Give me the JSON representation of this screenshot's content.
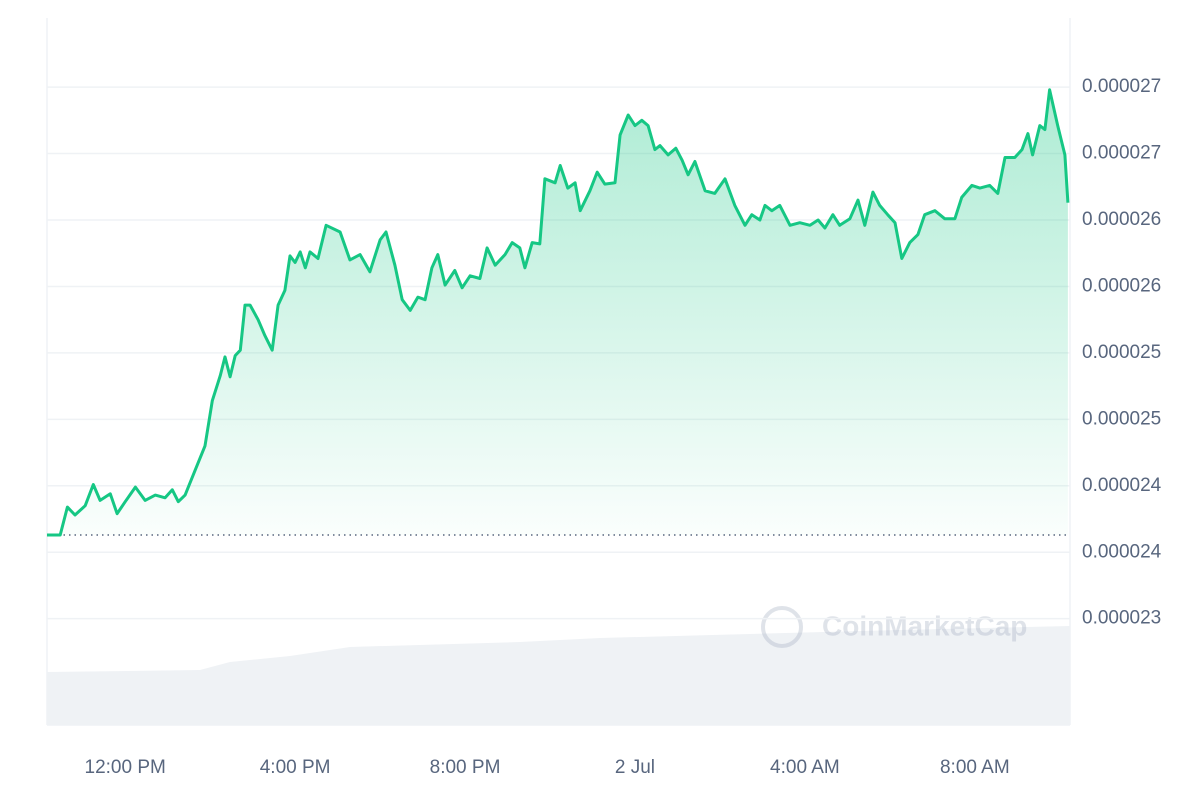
{
  "chart_data": {
    "type": "line",
    "watermark": "CoinMarketCap",
    "x": [
      -1.84,
      -1.53,
      -1.36,
      -1.18,
      -0.94,
      -0.75,
      -0.59,
      -0.35,
      -0.19,
      0,
      0.24,
      0.47,
      0.71,
      0.94,
      1.11,
      1.25,
      1.41,
      1.65,
      1.88,
      2.05,
      2.24,
      2.35,
      2.47,
      2.59,
      2.71,
      2.82,
      2.94,
      3.13,
      3.29,
      3.46,
      3.6,
      3.76,
      3.88,
      4,
      4.12,
      4.24,
      4.35,
      4.54,
      4.73,
      5.06,
      5.29,
      5.53,
      5.76,
      6,
      6.14,
      6.35,
      6.52,
      6.71,
      6.89,
      7.06,
      7.22,
      7.36,
      7.53,
      7.76,
      7.93,
      8.12,
      8.35,
      8.52,
      8.71,
      8.94,
      9.11,
      9.29,
      9.41,
      9.58,
      9.76,
      9.88,
      10.12,
      10.24,
      10.42,
      10.59,
      10.71,
      10.94,
      11.11,
      11.29,
      11.53,
      11.65,
      11.84,
      12,
      12.16,
      12.31,
      12.47,
      12.59,
      12.78,
      12.96,
      13.11,
      13.25,
      13.41,
      13.65,
      13.88,
      14.12,
      14.35,
      14.59,
      14.75,
      14.94,
      15.06,
      15.22,
      15.41,
      15.65,
      15.88,
      16.12,
      16.31,
      16.47,
      16.66,
      16.82,
      17.06,
      17.25,
      17.41,
      17.6,
      17.76,
      17.95,
      18.12,
      18.28,
      18.47,
      18.66,
      18.82,
      19.06,
      19.29,
      19.53,
      19.69,
      19.93,
      20.12,
      20.35,
      20.54,
      20.71,
      20.94,
      21.11,
      21.25,
      21.36,
      21.53,
      21.65,
      21.76,
      21.95,
      22.12,
      22.19
    ],
    "series": [
      {
        "color": "#16c784",
        "values": [
          2.363e-05,
          2.363e-05,
          2.384e-05,
          2.378e-05,
          2.385e-05,
          2.401e-05,
          2.389e-05,
          2.394e-05,
          2.379e-05,
          2.388e-05,
          2.399e-05,
          2.389e-05,
          2.393e-05,
          2.391e-05,
          2.397e-05,
          2.388e-05,
          2.393e-05,
          2.412e-05,
          2.43e-05,
          2.464e-05,
          2.483e-05,
          2.497e-05,
          2.482e-05,
          2.498e-05,
          2.502e-05,
          2.536e-05,
          2.536e-05,
          2.525e-05,
          2.513e-05,
          2.502e-05,
          2.536e-05,
          2.547e-05,
          2.573e-05,
          2.568e-05,
          2.576e-05,
          2.564e-05,
          2.576e-05,
          2.571e-05,
          2.596e-05,
          2.591e-05,
          2.57e-05,
          2.574e-05,
          2.561e-05,
          2.585e-05,
          2.591e-05,
          2.566e-05,
          2.54e-05,
          2.532e-05,
          2.542e-05,
          2.54e-05,
          2.564e-05,
          2.574e-05,
          2.551e-05,
          2.562e-05,
          2.549e-05,
          2.558e-05,
          2.556e-05,
          2.579e-05,
          2.566e-05,
          2.574e-05,
          2.583e-05,
          2.579e-05,
          2.564e-05,
          2.583e-05,
          2.582e-05,
          2.631e-05,
          2.628e-05,
          2.641e-05,
          2.624e-05,
          2.628e-05,
          2.607e-05,
          2.622e-05,
          2.636e-05,
          2.627e-05,
          2.628e-05,
          2.664e-05,
          2.679e-05,
          2.671e-05,
          2.675e-05,
          2.671e-05,
          2.653e-05,
          2.656e-05,
          2.649e-05,
          2.654e-05,
          2.645e-05,
          2.634e-05,
          2.644e-05,
          2.622e-05,
          2.62e-05,
          2.631e-05,
          2.611e-05,
          2.596e-05,
          2.604e-05,
          2.6e-05,
          2.611e-05,
          2.607e-05,
          2.611e-05,
          2.596e-05,
          2.598e-05,
          2.596e-05,
          2.6e-05,
          2.594e-05,
          2.604e-05,
          2.596e-05,
          2.601e-05,
          2.615e-05,
          2.596e-05,
          2.621e-05,
          2.611e-05,
          2.604e-05,
          2.598e-05,
          2.571e-05,
          2.583e-05,
          2.589e-05,
          2.604e-05,
          2.607e-05,
          2.601e-05,
          2.601e-05,
          2.617e-05,
          2.626e-05,
          2.624e-05,
          2.626e-05,
          2.62e-05,
          2.647e-05,
          2.647e-05,
          2.653e-05,
          2.665e-05,
          2.649e-05,
          2.671e-05,
          2.668e-05,
          2.698e-05,
          2.671e-05,
          2.649e-05,
          2.613e-05
        ]
      }
    ],
    "reference_line": 2.363e-05,
    "xlim": [
      -1.84,
      22.24
    ],
    "xticks": [
      {
        "value": 0,
        "label": "12:00 PM"
      },
      {
        "value": 4,
        "label": "4:00 PM"
      },
      {
        "value": 8,
        "label": "8:00 PM"
      },
      {
        "value": 12,
        "label": "2 Jul"
      },
      {
        "value": 16,
        "label": "4:00 AM"
      },
      {
        "value": 20,
        "label": "8:00 AM"
      }
    ],
    "ylim": [
      2.22e-05,
      2.752e-05
    ],
    "yticks": [
      {
        "value": 2.7e-05,
        "label": "0.000027"
      },
      {
        "value": 2.65e-05,
        "label": "0.000027"
      },
      {
        "value": 2.6e-05,
        "label": "0.000026"
      },
      {
        "value": 2.55e-05,
        "label": "0.000026"
      },
      {
        "value": 2.5e-05,
        "label": "0.000025"
      },
      {
        "value": 2.45e-05,
        "label": "0.000025"
      },
      {
        "value": 2.4e-05,
        "label": "0.000024"
      },
      {
        "value": 2.35e-05,
        "label": "0.000024"
      },
      {
        "value": 2.3e-05,
        "label": "0.000023"
      }
    ],
    "grid": true
  }
}
